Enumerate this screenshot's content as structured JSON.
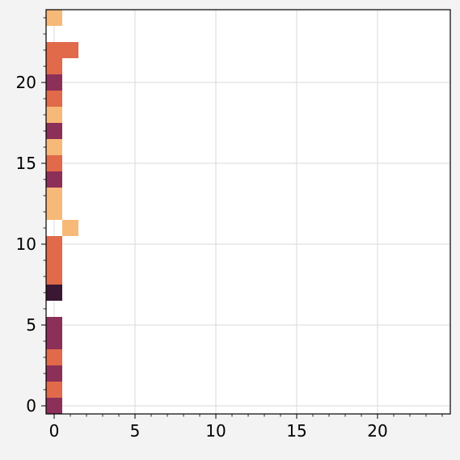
{
  "colors": {
    "figure_background": "#f3f3f3",
    "plot_background": "#ffffff",
    "grid": "#d9d9d9",
    "axis": "#000000",
    "colormap": [
      "#f7b977",
      "#e06a4a",
      "#8c2f59",
      "#3a1733"
    ]
  },
  "chart_data": {
    "type": "heatmap",
    "title": "",
    "xlabel": "",
    "ylabel": "",
    "grid": true,
    "xlim": [
      -0.5,
      24.5
    ],
    "ylim": [
      -0.5,
      24.5
    ],
    "xticks": [
      0,
      5,
      10,
      15,
      20
    ],
    "yticks": [
      0,
      5,
      10,
      15,
      20
    ],
    "xtick_labels": [
      "0",
      "5",
      "10",
      "15",
      "20"
    ],
    "ytick_labels": [
      "0",
      "5",
      "10",
      "15",
      "20"
    ],
    "level_colors": {
      "1": "#f7b977",
      "2": "#e06a4a",
      "3": "#8c2f59",
      "4": "#3a1733"
    },
    "cells": [
      {
        "x": 0,
        "y": 0,
        "level": 3
      },
      {
        "x": 0,
        "y": 1,
        "level": 2
      },
      {
        "x": 0,
        "y": 2,
        "level": 3
      },
      {
        "x": 0,
        "y": 3,
        "level": 2
      },
      {
        "x": 0,
        "y": 4,
        "level": 3
      },
      {
        "x": 0,
        "y": 5,
        "level": 3
      },
      {
        "x": 0,
        "y": 7,
        "level": 4
      },
      {
        "x": 0,
        "y": 8,
        "level": 2
      },
      {
        "x": 0,
        "y": 9,
        "level": 2
      },
      {
        "x": 0,
        "y": 10,
        "level": 2
      },
      {
        "x": 1,
        "y": 11,
        "level": 1
      },
      {
        "x": 0,
        "y": 12,
        "level": 1
      },
      {
        "x": 0,
        "y": 13,
        "level": 1
      },
      {
        "x": 0,
        "y": 14,
        "level": 3
      },
      {
        "x": 0,
        "y": 15,
        "level": 2
      },
      {
        "x": 0,
        "y": 16,
        "level": 1
      },
      {
        "x": 0,
        "y": 17,
        "level": 3
      },
      {
        "x": 0,
        "y": 18,
        "level": 1
      },
      {
        "x": 0,
        "y": 19,
        "level": 2
      },
      {
        "x": 0,
        "y": 20,
        "level": 3
      },
      {
        "x": 0,
        "y": 21,
        "level": 2
      },
      {
        "x": 0,
        "y": 22,
        "level": 2
      },
      {
        "x": 1,
        "y": 22,
        "level": 2
      },
      {
        "x": 0,
        "y": 24,
        "level": 1
      }
    ]
  }
}
